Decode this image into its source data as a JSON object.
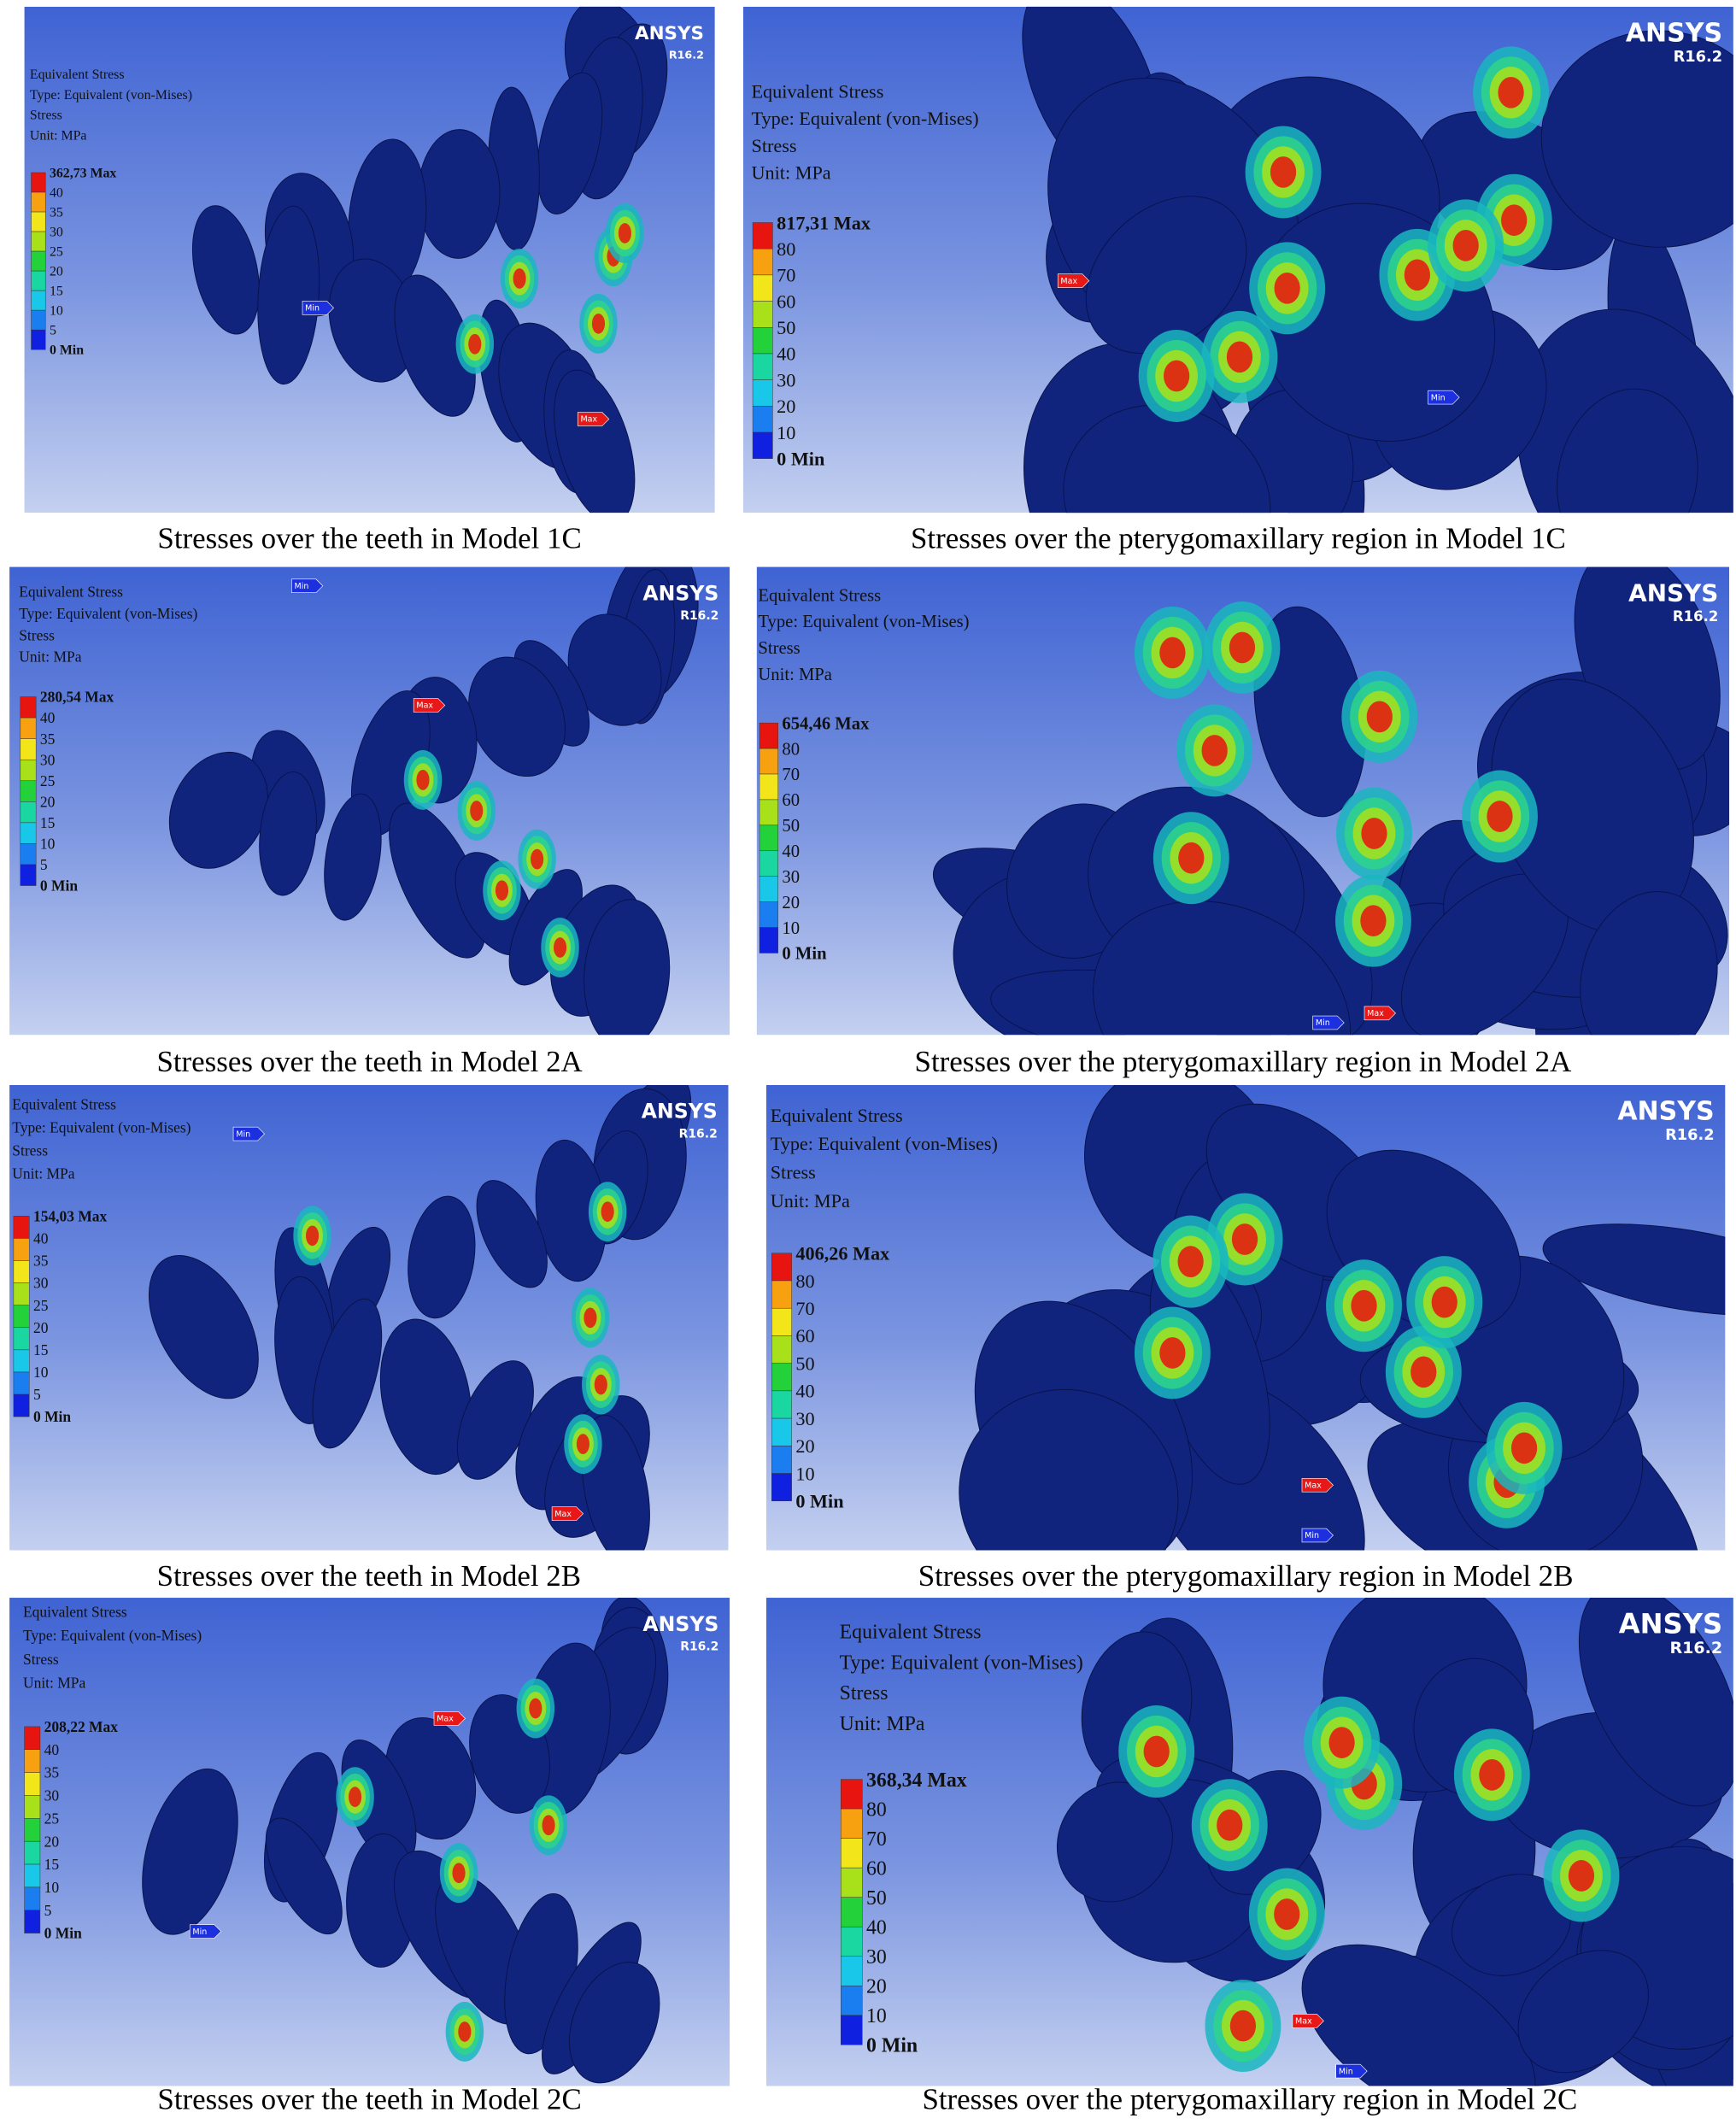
{
  "panels": [
    {
      "caption": "Stresses over the teeth in Model 1C",
      "brand": "ANSYS",
      "version": "R16.2",
      "legend": {
        "title": "Equivalent Stress",
        "type": "Type: Equivalent (von-Mises)",
        "quantity": "Stress",
        "unit": "Unit: MPa",
        "max": "362,73 Max",
        "levels": [
          40,
          35,
          30,
          25,
          20,
          15,
          10,
          5
        ],
        "min": "0 Min"
      },
      "markers": [
        "Min",
        "Max"
      ]
    },
    {
      "caption": "Stresses over the pterygomaxillary region in Model 1C",
      "brand": "ANSYS",
      "version": "R16.2",
      "legend": {
        "title": "Equivalent Stress",
        "type": "Type: Equivalent (von-Mises)",
        "quantity": "Stress",
        "unit": "Unit: MPa",
        "max": "817,31 Max",
        "levels": [
          80,
          70,
          60,
          50,
          40,
          30,
          20,
          10
        ],
        "min": "0 Min"
      },
      "markers": [
        "Max",
        "Min"
      ]
    },
    {
      "caption": "Stresses over the teeth in Model 2A",
      "brand": "ANSYS",
      "version": "R16.2",
      "legend": {
        "title": "Equivalent Stress",
        "type": "Type: Equivalent (von-Mises)",
        "quantity": "Stress",
        "unit": "Unit: MPa",
        "max": "280,54 Max",
        "levels": [
          40,
          35,
          30,
          25,
          20,
          15,
          10,
          5
        ],
        "min": "0 Min"
      },
      "markers": [
        "Min",
        "Max"
      ]
    },
    {
      "caption": "Stresses over the pterygomaxillary region in Model 2A",
      "brand": "ANSYS",
      "version": "R16.2",
      "legend": {
        "title": "Equivalent Stress",
        "type": "Type: Equivalent (von-Mises)",
        "quantity": "Stress",
        "unit": "Unit: MPa",
        "max": "654,46 Max",
        "levels": [
          80,
          70,
          60,
          50,
          40,
          30,
          20,
          10
        ],
        "min": "0 Min"
      },
      "markers": [
        "Min",
        "Max"
      ]
    },
    {
      "caption": "Stresses over the teeth in Model 2B",
      "brand": "ANSYS",
      "version": "R16.2",
      "legend": {
        "title": "Equivalent Stress",
        "type": "Type: Equivalent (von-Mises)",
        "quantity": "Stress",
        "unit": "Unit: MPa",
        "max": "154,03 Max",
        "levels": [
          40,
          35,
          30,
          25,
          20,
          15,
          10,
          5
        ],
        "min": "0 Min"
      },
      "markers": [
        "Min",
        "Max"
      ]
    },
    {
      "caption": "Stresses over the pterygomaxillary region in Model 2B",
      "brand": "ANSYS",
      "version": "R16.2",
      "legend": {
        "title": "Equivalent Stress",
        "type": "Type: Equivalent (von-Mises)",
        "quantity": "Stress",
        "unit": "Unit: MPa",
        "max": "406,26 Max",
        "levels": [
          80,
          70,
          60,
          50,
          40,
          30,
          20,
          10
        ],
        "min": "0 Min"
      },
      "markers": [
        "Max",
        "Min"
      ]
    },
    {
      "caption": "Stresses over the teeth in Model 2C",
      "brand": "ANSYS",
      "version": "R16.2",
      "legend": {
        "title": "Equivalent Stress",
        "type": "Type: Equivalent (von-Mises)",
        "quantity": "Stress",
        "unit": "Unit: MPa",
        "max": "208,22 Max",
        "levels": [
          40,
          35,
          30,
          25,
          20,
          15,
          10,
          5
        ],
        "min": "0 Min"
      },
      "markers": [
        "Max",
        "Min"
      ]
    },
    {
      "caption": "Stresses over the pterygomaxillary region in Model 2C",
      "brand": "ANSYS",
      "version": "R16.2",
      "legend": {
        "title": "Equivalent Stress",
        "type": "Type: Equivalent (von-Mises)",
        "quantity": "Stress",
        "unit": "Unit: MPa",
        "max": "368,34 Max",
        "levels": [
          80,
          70,
          60,
          50,
          40,
          30,
          20,
          10
        ],
        "min": "0 Min"
      },
      "markers": [
        "Max",
        "Min"
      ]
    }
  ]
}
